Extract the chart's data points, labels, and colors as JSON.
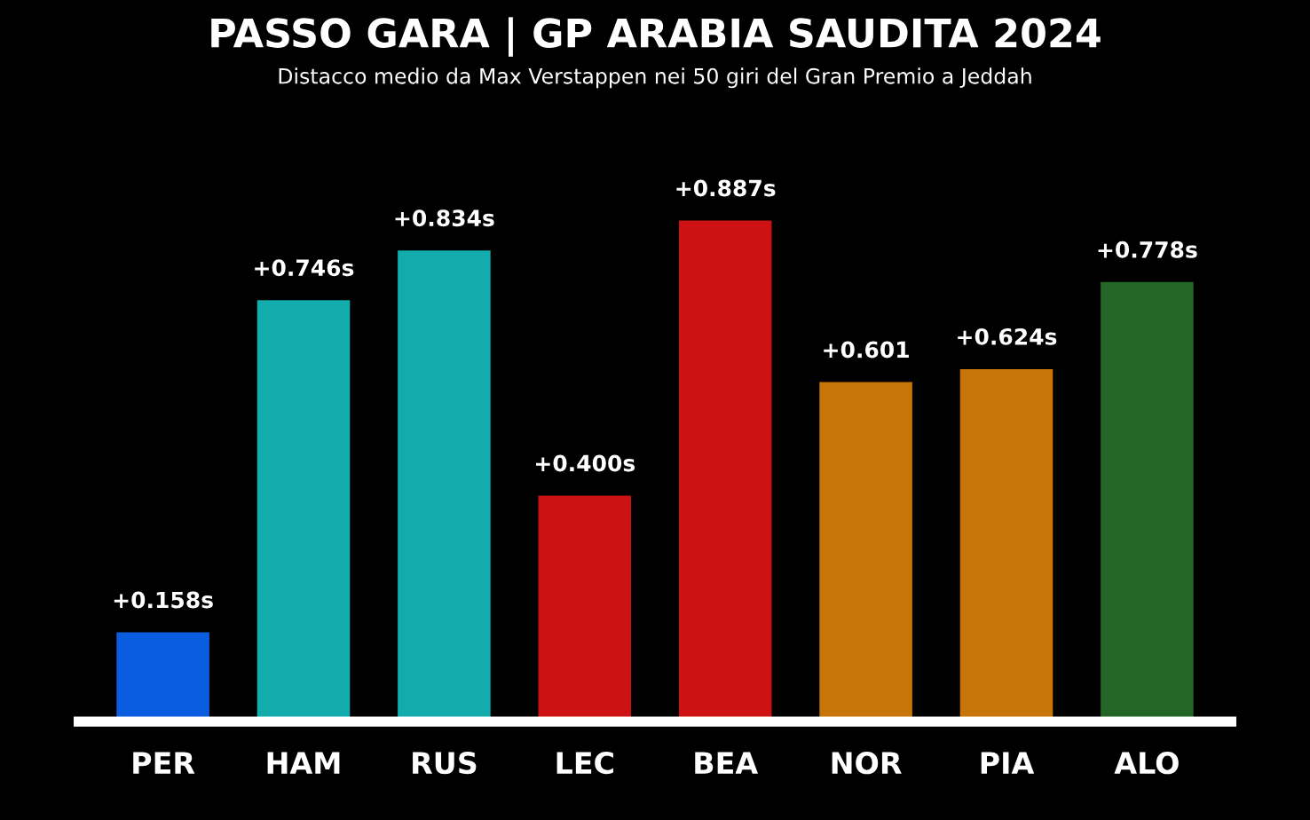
{
  "chart_data": {
    "type": "bar",
    "title": "PASSO GARA | GP ARABIA SAUDITA 2024",
    "subtitle": "Distacco medio da Max Verstappen nei 50 giri del Gran Premio a Jeddah",
    "categories": [
      "PER",
      "HAM",
      "RUS",
      "LEC",
      "BEA",
      "NOR",
      "PIA",
      "ALO"
    ],
    "values": [
      0.158,
      0.746,
      0.834,
      0.4,
      0.887,
      0.601,
      0.624,
      0.778
    ],
    "colors": [
      "#0b5de0",
      "#12acac",
      "#12acac",
      "#cc1212",
      "#cc1212",
      "#c77508",
      "#c77508",
      "#246626"
    ],
    "value_labels": [
      "+0.158s",
      "+0.746s",
      "+0.834s",
      "+0.400s",
      "+0.887s",
      "+0.601",
      "+0.624s",
      "+0.778s"
    ],
    "grid": false,
    "legend": false
  }
}
